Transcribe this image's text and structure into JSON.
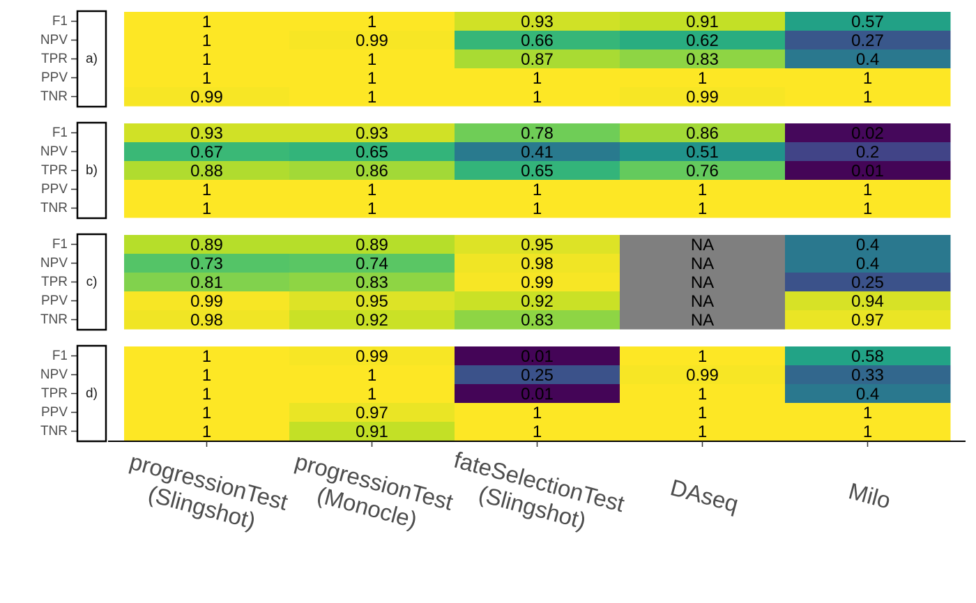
{
  "chart_data": {
    "type": "heatmap",
    "colormap": "viridis",
    "na_color": "#7f7f7f",
    "color_range": [
      0,
      1
    ],
    "rows": [
      "F1",
      "NPV",
      "TPR",
      "PPV",
      "TNR"
    ],
    "columns": [
      {
        "line1": "progressionTest",
        "line2": "(Slingshot)"
      },
      {
        "line1": "progressionTest",
        "line2": "(Monocle)"
      },
      {
        "line1": "fateSelectionTest",
        "line2": "(Slingshot)"
      },
      {
        "line1": "DAseq",
        "line2": ""
      },
      {
        "line1": "Milo",
        "line2": ""
      }
    ],
    "panels": [
      {
        "label": "a)",
        "values": [
          [
            "1",
            "1",
            "0.93",
            "0.91",
            "0.57"
          ],
          [
            "1",
            "0.99",
            "0.66",
            "0.62",
            "0.27"
          ],
          [
            "1",
            "1",
            "0.87",
            "0.83",
            "0.4"
          ],
          [
            "1",
            "1",
            "1",
            "1",
            "1"
          ],
          [
            "0.99",
            "1",
            "1",
            "0.99",
            "1"
          ]
        ]
      },
      {
        "label": "b)",
        "values": [
          [
            "0.93",
            "0.93",
            "0.78",
            "0.86",
            "0.02"
          ],
          [
            "0.67",
            "0.65",
            "0.41",
            "0.51",
            "0.2"
          ],
          [
            "0.88",
            "0.86",
            "0.65",
            "0.76",
            "0.01"
          ],
          [
            "1",
            "1",
            "1",
            "1",
            "1"
          ],
          [
            "1",
            "1",
            "1",
            "1",
            "1"
          ]
        ]
      },
      {
        "label": "c)",
        "values": [
          [
            "0.89",
            "0.89",
            "0.95",
            "NA",
            "0.4"
          ],
          [
            "0.73",
            "0.74",
            "0.98",
            "NA",
            "0.4"
          ],
          [
            "0.81",
            "0.83",
            "0.99",
            "NA",
            "0.25"
          ],
          [
            "0.99",
            "0.95",
            "0.92",
            "NA",
            "0.94"
          ],
          [
            "0.98",
            "0.92",
            "0.83",
            "NA",
            "0.97"
          ]
        ]
      },
      {
        "label": "d)",
        "values": [
          [
            "1",
            "0.99",
            "0.01",
            "1",
            "0.58"
          ],
          [
            "1",
            "1",
            "0.25",
            "0.99",
            "0.33"
          ],
          [
            "1",
            "1",
            "0.01",
            "1",
            "0.4"
          ],
          [
            "1",
            "0.97",
            "1",
            "1",
            "1"
          ],
          [
            "1",
            "0.91",
            "1",
            "1",
            "1"
          ]
        ]
      }
    ]
  }
}
